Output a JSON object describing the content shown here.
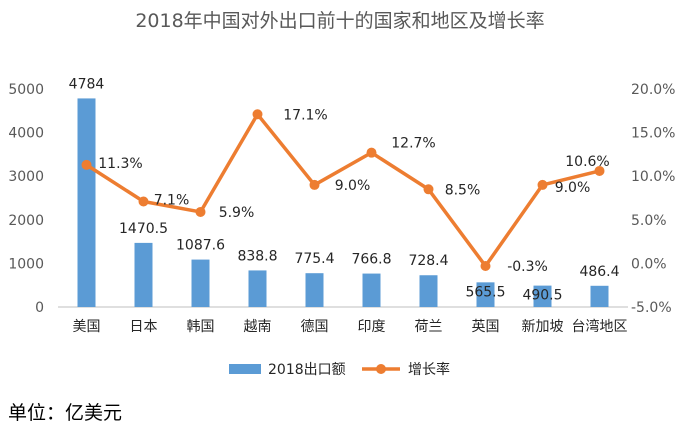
{
  "chart_data": {
    "type": "bar+line",
    "title": "2018年中国对外出口前十的国家和地区及增长率",
    "categories": [
      "美国",
      "日本",
      "韩国",
      "越南",
      "德国",
      "印度",
      "荷兰",
      "英国",
      "新加坡",
      "台湾地区"
    ],
    "series": [
      {
        "name": "2018出口额",
        "type": "bar",
        "axis": "left",
        "color": "#5B9BD5",
        "values": [
          4784,
          1470.5,
          1087.6,
          838.8,
          775.4,
          766.8,
          728.4,
          565.5,
          490.5,
          486.4
        ],
        "labels": [
          "4784",
          "1470.5",
          "1087.6",
          "838.8",
          "775.4",
          "766.8",
          "728.4",
          "565.5",
          "490.5",
          "486.4"
        ]
      },
      {
        "name": "增长率",
        "type": "line",
        "axis": "right",
        "color": "#ED7D31",
        "values": [
          11.3,
          7.1,
          5.9,
          17.1,
          9.0,
          12.7,
          8.5,
          -0.3,
          9.0,
          10.6
        ],
        "labels": [
          "11.3%",
          "7.1%",
          "5.9%",
          "17.1%",
          "9.0%",
          "12.7%",
          "8.5%",
          "-0.3%",
          "9.0%",
          "10.6%"
        ]
      }
    ],
    "y_left": {
      "min": 0,
      "max": 5000,
      "ticks": [
        "0",
        "1000",
        "2000",
        "3000",
        "4000",
        "5000"
      ]
    },
    "y_right": {
      "min": -5,
      "max": 20,
      "ticks": [
        "-5.0%",
        "0.0%",
        "5.0%",
        "10.0%",
        "15.0%",
        "20.0%"
      ]
    },
    "legend": {
      "position": "bottom",
      "items": [
        "2018出口额",
        "增长率"
      ]
    },
    "grid": false
  },
  "footer": {
    "unit": "单位：亿美元"
  }
}
